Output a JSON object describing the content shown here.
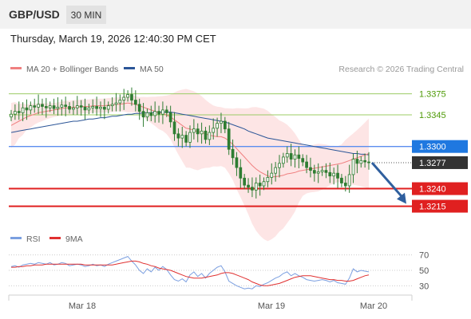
{
  "header": {
    "symbol": "GBP/USD",
    "timeframe": "30 MIN",
    "datetime": "Thursday, March 19, 2026 12:40:30 PM CET"
  },
  "legend": {
    "ma20_label": "MA 20 + Bollinger Bands",
    "ma50_label": "MA 50",
    "credit": "Research © 2026 Trading Central",
    "rsi_label": "RSI",
    "rsi_ma_label": "9MA"
  },
  "colors": {
    "ma20": "#f08080",
    "ma50": "#2b5597",
    "bollinger_fill": "#fde0e0",
    "candle": "#2e7d32",
    "resistance_line": "#9ccc65",
    "resistance_text": "#4e9a06",
    "pivot_line": "#5b8def",
    "pivot_label_bg": "#1f78e0",
    "support_line": "#e02020",
    "support_label_bg": "#e02020",
    "current_label_bg": "#333333",
    "arrow": "#2f5f9e",
    "rsi": "#7b9fe0",
    "rsi_ma": "#e03030"
  },
  "chart_data": [
    {
      "type": "candlestick",
      "title": "GBP/USD",
      "timeframe": "30 MIN",
      "x_tick_labels": [
        "Mar 18",
        "Mar 19",
        "Mar 20"
      ],
      "ylim": [
        1.3185,
        1.3395
      ],
      "levels": [
        {
          "value": 1.3375,
          "label": "1.3375",
          "kind": "resistance"
        },
        {
          "value": 1.3345,
          "label": "1.3345",
          "kind": "resistance"
        },
        {
          "value": 1.33,
          "label": "1.3300",
          "kind": "pivot"
        },
        {
          "value": 1.3277,
          "label": "1.3277",
          "kind": "current"
        },
        {
          "value": 1.324,
          "label": "1.3240",
          "kind": "support"
        },
        {
          "value": 1.3215,
          "label": "1.3215",
          "kind": "support"
        }
      ],
      "candles_close": [
        1.3346,
        1.335,
        1.3348,
        1.3355,
        1.3352,
        1.3358,
        1.3356,
        1.336,
        1.3357,
        1.3355,
        1.3358,
        1.3354,
        1.3356,
        1.3359,
        1.3357,
        1.3353,
        1.3355,
        1.3358,
        1.3356,
        1.3352,
        1.3355,
        1.3357,
        1.3354,
        1.3356,
        1.3353,
        1.3358,
        1.336,
        1.3362,
        1.3366,
        1.337,
        1.3374,
        1.3366,
        1.336,
        1.335,
        1.3342,
        1.3348,
        1.3344,
        1.335,
        1.3346,
        1.3352,
        1.3348,
        1.3335,
        1.3318,
        1.3312,
        1.3316,
        1.3306,
        1.332,
        1.3325,
        1.3318,
        1.3322,
        1.331,
        1.332,
        1.3326,
        1.3333,
        1.3336,
        1.3325,
        1.3296,
        1.3284,
        1.327,
        1.3255,
        1.3245,
        1.3242,
        1.3238,
        1.3248,
        1.3244,
        1.325,
        1.3256,
        1.3262,
        1.327,
        1.3276,
        1.3285,
        1.329,
        1.3282,
        1.3288,
        1.3283,
        1.3278,
        1.327,
        1.3266,
        1.3262,
        1.3264,
        1.3266,
        1.3263,
        1.3258,
        1.3262,
        1.3255,
        1.3248,
        1.3244,
        1.326,
        1.3282,
        1.3276,
        1.328,
        1.3278,
        1.3277
      ],
      "ma20": [
        1.333,
        1.3333,
        1.3336,
        1.3339,
        1.3342,
        1.3344,
        1.3346,
        1.3348,
        1.3349,
        1.335,
        1.3351,
        1.3352,
        1.3353,
        1.3354,
        1.3355,
        1.3355,
        1.3356,
        1.3356,
        1.3357,
        1.3357,
        1.3357,
        1.3358,
        1.3358,
        1.3358,
        1.3358,
        1.3359,
        1.3359,
        1.336,
        1.336,
        1.3361,
        1.3362,
        1.3361,
        1.336,
        1.3358,
        1.3356,
        1.3354,
        1.3352,
        1.335,
        1.3348,
        1.3347,
        1.3345,
        1.3342,
        1.3338,
        1.3334,
        1.333,
        1.3326,
        1.3325,
        1.3323,
        1.3321,
        1.332,
        1.3318,
        1.3316,
        1.3315,
        1.3314,
        1.3314,
        1.3312,
        1.3308,
        1.3303,
        1.3297,
        1.3291,
        1.3285,
        1.3279,
        1.3273,
        1.3268,
        1.3264,
        1.3261,
        1.3258,
        1.3257,
        1.3257,
        1.3258,
        1.3259,
        1.3261,
        1.3262,
        1.3263,
        1.3265,
        1.3266,
        1.3267,
        1.3268,
        1.3269,
        1.327,
        1.3271,
        1.3272,
        1.3273,
        1.3274,
        1.3275,
        1.3276,
        1.3278,
        1.328,
        1.3282,
        1.3284,
        1.3286,
        1.3288,
        1.329
      ],
      "ma50": [
        1.332,
        1.3321,
        1.3322,
        1.3323,
        1.3324,
        1.3325,
        1.3326,
        1.3327,
        1.3328,
        1.3329,
        1.333,
        1.3331,
        1.3332,
        1.3333,
        1.3334,
        1.3335,
        1.3336,
        1.3336,
        1.3337,
        1.3338,
        1.3339,
        1.3339,
        1.334,
        1.3341,
        1.3341,
        1.3342,
        1.3343,
        1.3343,
        1.3344,
        1.3345,
        1.3346,
        1.3346,
        1.3347,
        1.3347,
        1.3348,
        1.3348,
        1.3348,
        1.3349,
        1.3349,
        1.3349,
        1.3349,
        1.3349,
        1.3348,
        1.3347,
        1.3346,
        1.3345,
        1.3344,
        1.3343,
        1.3342,
        1.3341,
        1.334,
        1.3339,
        1.3338,
        1.3337,
        1.3336,
        1.3335,
        1.3333,
        1.3331,
        1.3329,
        1.3327,
        1.3325,
        1.3322,
        1.332,
        1.3318,
        1.3316,
        1.3314,
        1.3312,
        1.3311,
        1.331,
        1.3309,
        1.3308,
        1.3307,
        1.3306,
        1.3305,
        1.3304,
        1.3303,
        1.3302,
        1.3301,
        1.33,
        1.3299,
        1.3298,
        1.3297,
        1.3296,
        1.3295,
        1.3294,
        1.3293,
        1.3292,
        1.3291,
        1.329,
        1.329,
        1.3289,
        1.3289,
        1.3288
      ]
    },
    {
      "type": "line",
      "title": "RSI",
      "ylim": [
        20,
        80
      ],
      "y_ticks": [
        70,
        50,
        30
      ],
      "series": [
        {
          "name": "RSI",
          "values": [
            55,
            56,
            54,
            57,
            58,
            59,
            58,
            60,
            59,
            58,
            60,
            57,
            58,
            60,
            59,
            56,
            57,
            58,
            57,
            55,
            56,
            58,
            56,
            57,
            55,
            58,
            60,
            62,
            64,
            66,
            68,
            62,
            57,
            50,
            46,
            52,
            48,
            54,
            50,
            55,
            51,
            44,
            38,
            36,
            39,
            35,
            44,
            48,
            42,
            46,
            40,
            46,
            50,
            54,
            56,
            48,
            36,
            33,
            30,
            28,
            26,
            27,
            26,
            30,
            29,
            32,
            34,
            37,
            40,
            42,
            46,
            48,
            43,
            46,
            43,
            41,
            38,
            37,
            36,
            37,
            38,
            37,
            35,
            37,
            34,
            33,
            32,
            40,
            52,
            48,
            50,
            49,
            48
          ]
        },
        {
          "name": "9MA",
          "values": [
            54,
            54,
            55,
            55,
            56,
            56,
            57,
            57,
            57,
            58,
            58,
            58,
            58,
            58,
            58,
            58,
            58,
            58,
            58,
            57,
            57,
            57,
            57,
            57,
            57,
            57,
            57,
            58,
            59,
            60,
            61,
            62,
            62,
            61,
            59,
            58,
            56,
            55,
            53,
            52,
            51,
            50,
            48,
            46,
            44,
            42,
            41,
            40,
            40,
            40,
            41,
            42,
            43,
            44,
            46,
            47,
            47,
            46,
            44,
            42,
            40,
            38,
            35,
            33,
            31,
            30,
            30,
            31,
            32,
            33,
            35,
            37,
            39,
            41,
            42,
            43,
            43,
            43,
            42,
            41,
            40,
            39,
            38,
            38,
            37,
            37,
            36,
            36,
            37,
            39,
            41,
            43,
            44
          ]
        }
      ]
    }
  ]
}
